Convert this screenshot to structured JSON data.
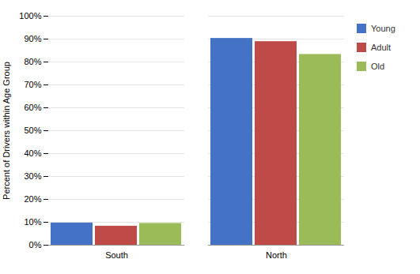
{
  "chart_data": {
    "type": "bar",
    "categories": [
      "South",
      "North"
    ],
    "series": [
      {
        "name": "Young",
        "color": "#4472C4",
        "values": [
          9.7,
          90.3
        ]
      },
      {
        "name": "Adult",
        "color": "#BE4B48",
        "values": [
          8.3,
          88.9
        ]
      },
      {
        "name": "Old",
        "color": "#9BBB59",
        "values": [
          9.5,
          83.3
        ]
      }
    ],
    "ylabel": "Percent of Drivers within Age Group",
    "ylim": [
      0,
      100
    ],
    "yticks": [
      {
        "value": 0,
        "label": "0%"
      },
      {
        "value": 10,
        "label": "10%"
      },
      {
        "value": 20,
        "label": "20%"
      },
      {
        "value": 30,
        "label": "30%"
      },
      {
        "value": 40,
        "label": "40%"
      },
      {
        "value": 50,
        "label": "50%"
      },
      {
        "value": 60,
        "label": "60%"
      },
      {
        "value": 70,
        "label": "70%"
      },
      {
        "value": 80,
        "label": "80%"
      },
      {
        "value": 90,
        "label": "90%"
      },
      {
        "value": 100,
        "label": "100%"
      }
    ],
    "grid": true,
    "legend": "right"
  }
}
